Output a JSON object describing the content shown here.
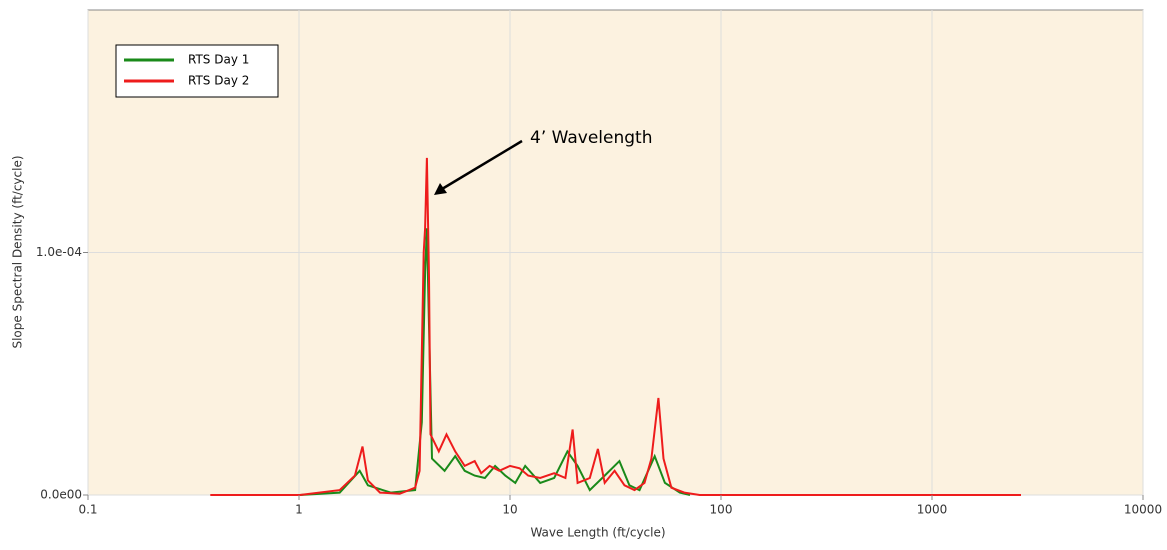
{
  "chart_data": {
    "type": "line",
    "xlabel": "Wave Length (ft/cycle)",
    "ylabel": "Slope Spectral Density (ft/cycle)",
    "annotation": "4’ Wavelength",
    "xscale": "log",
    "xlim": [
      0.1,
      10000
    ],
    "xticks": [
      0.1,
      1,
      10,
      100,
      1000,
      10000
    ],
    "ylim": [
      0,
      0.0002
    ],
    "yticks": [
      {
        "value": 0,
        "label": "0.0e00"
      },
      {
        "value": 0.0001,
        "label": "1.0e-04"
      }
    ],
    "grid": true,
    "legend": "upper left",
    "series": [
      {
        "name": "RTS Day 1",
        "color": "#1a8a1a",
        "x": [
          1.01,
          1.56,
          1.94,
          2.12,
          2.72,
          3.55,
          3.82,
          3.96,
          4.04,
          4.13,
          4.27,
          4.9,
          5.5,
          6.1,
          6.8,
          7.6,
          8.5,
          9.5,
          10.6,
          11.8,
          13.9,
          16.2,
          18.7,
          20.9,
          23.9,
          28.1,
          33.0,
          36.8,
          41.1,
          48.5,
          54.2,
          63.8,
          71.3
        ],
        "values": [
          0,
          1e-06,
          1e-05,
          4e-06,
          1e-06,
          2e-06,
          3e-05,
          9.2e-05,
          0.00011,
          7e-05,
          1.5e-05,
          1e-05,
          1.6e-05,
          1e-05,
          8e-06,
          7e-06,
          1.2e-05,
          8e-06,
          5e-06,
          1.2e-05,
          5e-06,
          7e-06,
          1.8e-05,
          1.2e-05,
          2e-06,
          8e-06,
          1.4e-05,
          4e-06,
          2e-06,
          1.6e-05,
          5e-06,
          1e-06,
          0
        ]
      },
      {
        "name": "RTS Day 2",
        "color": "#ee1c1c",
        "x": [
          0.38,
          1.01,
          1.56,
          1.84,
          2.0,
          2.12,
          2.42,
          3.0,
          3.55,
          3.73,
          3.9,
          3.96,
          4.04,
          4.13,
          4.2,
          4.6,
          5.0,
          5.5,
          6.1,
          6.8,
          7.3,
          8.0,
          8.9,
          10.0,
          11.1,
          12.2,
          13.9,
          16.2,
          18.3,
          19.8,
          20.9,
          23.9,
          26.1,
          28.1,
          31.3,
          34.9,
          38.9,
          43.4,
          46.8,
          50.5,
          53.4,
          58.2,
          67.0,
          79.3,
          2640
        ],
        "values": [
          0,
          0,
          2e-06,
          8e-06,
          2e-05,
          6e-06,
          1e-06,
          5e-07,
          3e-06,
          1e-05,
          0.0001,
          0.00011,
          0.000139,
          9e-05,
          2.5e-05,
          1.8e-05,
          2.5e-05,
          1.8e-05,
          1.2e-05,
          1.4e-05,
          9e-06,
          1.2e-05,
          1e-05,
          1.2e-05,
          1.1e-05,
          8e-06,
          7e-06,
          9e-06,
          7e-06,
          2.7e-05,
          5e-06,
          7e-06,
          1.9e-05,
          5e-06,
          1e-05,
          4e-06,
          2e-06,
          5e-06,
          1.5e-05,
          4e-05,
          1.5e-05,
          3e-06,
          1e-06,
          0,
          0
        ]
      }
    ]
  }
}
